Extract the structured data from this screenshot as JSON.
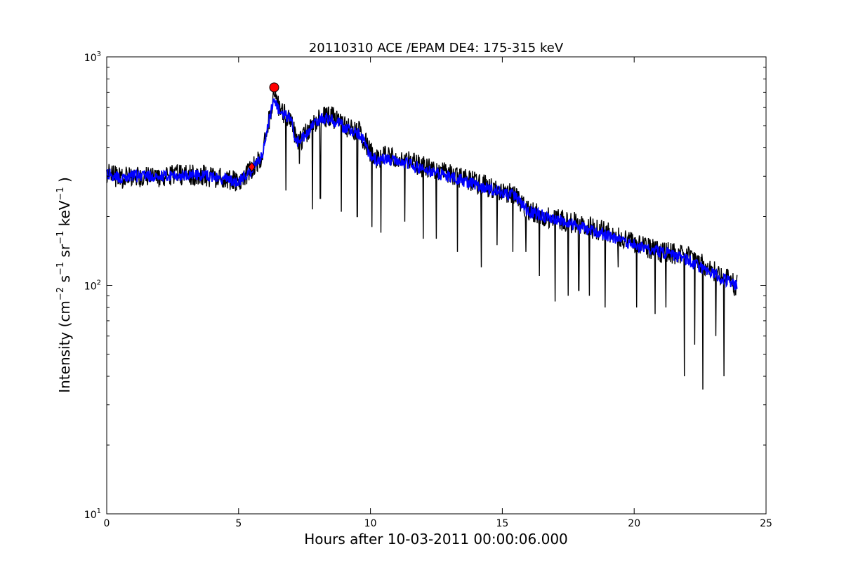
{
  "chart_data": {
    "type": "line",
    "title": "20110310 ACE /EPAM DE4: 175-315 keV",
    "xlabel": "Hours after 10-03-2011 00:00:06.000",
    "ylabel_parts": {
      "prefix": "Intensity (cm",
      "e1": "−2",
      "s": " s",
      "e2": "−1",
      "sr": " sr",
      "e3": "−1",
      "kev": " keV",
      "e4": "−1",
      "suffix": " )"
    },
    "xlim": [
      0,
      25
    ],
    "ylim": [
      10,
      1000
    ],
    "yscale": "log",
    "x_ticks": [
      0,
      5,
      10,
      15,
      20,
      25
    ],
    "y_ticks": [
      {
        "value": 10,
        "base": "10",
        "exp": "1"
      },
      {
        "value": 100,
        "base": "10",
        "exp": "2"
      },
      {
        "value": 1000,
        "base": "10",
        "exp": "3"
      }
    ],
    "grid": false,
    "series": [
      {
        "color": "#000000",
        "profile": [
          [
            0.0,
            310
          ],
          [
            0.5,
            295
          ],
          [
            1.0,
            300
          ],
          [
            2.0,
            300
          ],
          [
            3.0,
            305
          ],
          [
            4.0,
            300
          ],
          [
            4.5,
            290
          ],
          [
            5.0,
            285
          ],
          [
            5.5,
            320
          ],
          [
            5.9,
            370
          ],
          [
            6.2,
            560
          ],
          [
            6.35,
            660
          ],
          [
            6.6,
            580
          ],
          [
            7.0,
            540
          ],
          [
            7.2,
            420
          ],
          [
            7.5,
            450
          ],
          [
            8.0,
            540
          ],
          [
            8.5,
            550
          ],
          [
            9.0,
            500
          ],
          [
            9.6,
            470
          ],
          [
            9.9,
            400
          ],
          [
            10.2,
            360
          ],
          [
            10.5,
            370
          ],
          [
            11.0,
            360
          ],
          [
            11.5,
            350
          ],
          [
            12.0,
            330
          ],
          [
            13.0,
            310
          ],
          [
            14.0,
            280
          ],
          [
            15.0,
            260
          ],
          [
            15.5,
            250
          ],
          [
            16.0,
            210
          ],
          [
            17.0,
            195
          ],
          [
            18.0,
            185
          ],
          [
            19.0,
            170
          ],
          [
            20.0,
            155
          ],
          [
            21.0,
            140
          ],
          [
            22.0,
            135
          ],
          [
            22.5,
            125
          ],
          [
            23.0,
            115
          ],
          [
            23.9,
            100
          ]
        ],
        "dips": [
          [
            6.8,
            260
          ],
          [
            7.3,
            340
          ],
          [
            7.8,
            215
          ],
          [
            8.1,
            240
          ],
          [
            8.9,
            210
          ],
          [
            9.5,
            200
          ],
          [
            10.05,
            180
          ],
          [
            10.4,
            170
          ],
          [
            11.3,
            190
          ],
          [
            12.0,
            160
          ],
          [
            12.5,
            160
          ],
          [
            13.3,
            140
          ],
          [
            14.2,
            120
          ],
          [
            14.8,
            150
          ],
          [
            15.4,
            140
          ],
          [
            15.9,
            140
          ],
          [
            16.4,
            110
          ],
          [
            17.0,
            85
          ],
          [
            17.5,
            90
          ],
          [
            17.9,
            95
          ],
          [
            18.3,
            90
          ],
          [
            18.9,
            80
          ],
          [
            19.4,
            120
          ],
          [
            20.1,
            80
          ],
          [
            20.8,
            75
          ],
          [
            21.2,
            80
          ],
          [
            21.9,
            40
          ],
          [
            22.3,
            55
          ],
          [
            22.6,
            35
          ],
          [
            23.1,
            60
          ],
          [
            23.4,
            40
          ],
          [
            23.8,
            90
          ]
        ]
      },
      {
        "color": "#0000ff",
        "profile": [
          [
            0.0,
            310
          ],
          [
            0.5,
            295
          ],
          [
            1.0,
            300
          ],
          [
            2.0,
            300
          ],
          [
            3.0,
            305
          ],
          [
            4.0,
            300
          ],
          [
            4.5,
            290
          ],
          [
            5.0,
            285
          ],
          [
            5.5,
            320
          ],
          [
            5.9,
            370
          ],
          [
            6.2,
            560
          ],
          [
            6.35,
            640
          ],
          [
            6.6,
            570
          ],
          [
            7.0,
            530
          ],
          [
            7.2,
            420
          ],
          [
            7.5,
            450
          ],
          [
            8.0,
            530
          ],
          [
            8.5,
            540
          ],
          [
            9.0,
            490
          ],
          [
            9.6,
            460
          ],
          [
            9.9,
            390
          ],
          [
            10.2,
            350
          ],
          [
            10.5,
            360
          ],
          [
            11.0,
            350
          ],
          [
            11.5,
            340
          ],
          [
            12.0,
            320
          ],
          [
            13.0,
            300
          ],
          [
            14.0,
            275
          ],
          [
            15.0,
            255
          ],
          [
            15.5,
            245
          ],
          [
            16.0,
            210
          ],
          [
            17.0,
            195
          ],
          [
            18.0,
            180
          ],
          [
            19.0,
            165
          ],
          [
            20.0,
            150
          ],
          [
            21.0,
            140
          ],
          [
            22.0,
            130
          ],
          [
            22.5,
            120
          ],
          [
            23.0,
            112
          ],
          [
            23.9,
            100
          ]
        ]
      }
    ],
    "markers": [
      {
        "shape": "circle",
        "color": "#ff0000",
        "x": 6.35,
        "y": 735
      },
      {
        "shape": "diamond",
        "color": "#ff0000",
        "x": 5.5,
        "y": 330
      }
    ]
  }
}
